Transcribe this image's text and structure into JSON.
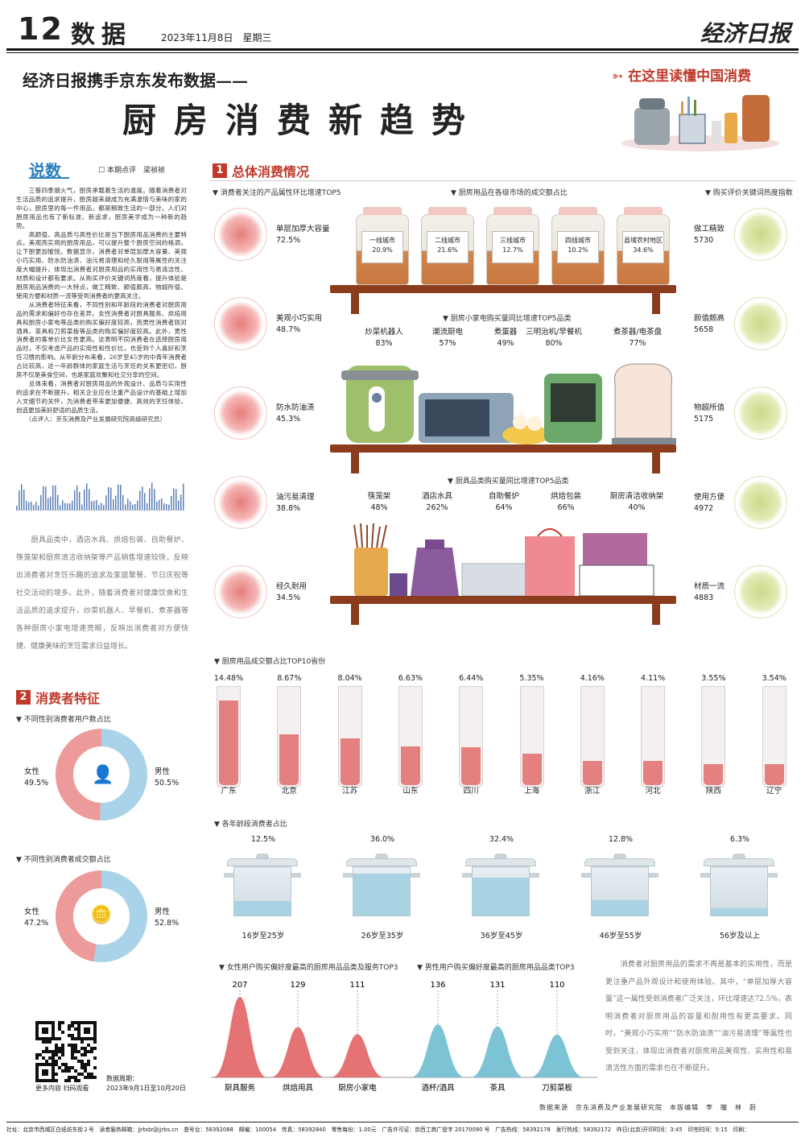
{
  "header": {
    "page_num": "12",
    "section": "数据",
    "date": "2023年11月8日",
    "weekday": "星期三",
    "paper": "经济日报"
  },
  "subtitle": "经济日报携手京东发布数据——",
  "title": "厨房消费新趋势",
  "slogan": "在这里读懂中国消费",
  "commentary": {
    "heading": "说数",
    "meta": "本期点评　梁祯祯",
    "body": "　　三餐四季烟火气，厨房承载着生活的温度。随着消费者对生活品质的追求提升，厨房越来越成为充满温情与美味的家的中心，厨房里的每一件用品，都是精致生活的一部分。人们对厨房用品也有了新标准、新追求，厨房美学成为一种新的趋势。\n　　高颜值、高品质与高性价比是当下厨房用品消费的主要特点。美观而实用的厨房用品，可以提升整个厨房空间的格调，让下厨更加愉悦。数据显示，消费者对单层加厚大容量、美观小巧实用、防水防油渍、油污易清理和经久耐用等属性的关注度大幅提升，体现出消费者对厨房用品的实用性与易清洁性、材质和设计都有要求。从购买评价关键词热度看，提升体验是厨房用品消费的一大特点，做工精致、颜值颇高、物超所值、使用方便和材质一流等受到消费者的更高关注。\n　　从消费者特征来看，不同性别和年龄段的消费者对厨房用品的需求和偏好也存在差异。女性消费者对厨具服务、烘焙用具和厨房小家电等品类的购买偏好度较高，而男性消费者则对酒具、茶具和刀剪菜板等品类的购买偏好度较高。此外，男性消费者的客单价比女性更高。这表明不同消费者在选择厨房用品时，不仅考虑产品的实用性和性价比，也受到个人喜好和烹饪习惯的影响。从年龄分布来看，26岁至45岁的中青年消费者占比较高，这一年龄群体的家庭生活与烹饪的关系更密切，厨房不仅是美食空间，也是家庭欢聚和社交分享的空间。\n　　总体来看，消费者对厨房用品的外观设计、品质与实用性的追求在不断提升，相关企业应在注重产品设计的基础上增加人文细节的关怀，为消费者带来更加便捷、高效的烹饪体验，创造更加美好舒适的品质生活。\n　　（点评人：京东消费及产业发展研究院高级研究员）",
    "para2": "　　厨具品类中，酒店水具、烘焙包装、自助餐炉、筷笼架和厨房清洁收纳架等产品销售增速较快，反映出消费者对烹饪乐趣的追求及家庭聚餐、节日庆祝等社交活动的增多。此外，随着消费者对健康饮食和生活品质的追求提升，炒菜机器人、早餐机、煮茶器等各种厨房小家电增速亮眼，反映出消费者对方便快捷、健康美味的烹饪需求日益增长。",
    "para3": "　　消费者对厨房用品的需求不再是基本的实用性，而是更注重产品外观设计和使用体验。其中，“单层加厚大容量”这一属性受到消费者广泛关注，环比增速达72.5%，表明消费者对厨房用品的容量和耐用性有更高要求。同时，“美观小巧实用”“防水防油渍”“油污易清理”等属性也受到关注，体现出消费者对厨房用品美观性、实用性和易清洁性方面的需求也在不断提升。"
  },
  "section1": {
    "num": "1",
    "title": "总体消费情况"
  },
  "section2": {
    "num": "2",
    "title": "消费者特征"
  },
  "attributes": {
    "heading": "消费者关注的产品属性环比增速TOP5",
    "items": [
      {
        "name": "单层加厚大容量",
        "value": "72.5%"
      },
      {
        "name": "美观小巧实用",
        "value": "48.7%"
      },
      {
        "name": "防水防油渍",
        "value": "45.3%"
      },
      {
        "name": "油污易清理",
        "value": "38.8%"
      },
      {
        "name": "经久耐用",
        "value": "34.5%"
      }
    ]
  },
  "keywords": {
    "heading": "购买评价关键词热度指数",
    "items": [
      {
        "name": "做工精致",
        "value": "5730"
      },
      {
        "name": "颜值颇高",
        "value": "5658"
      },
      {
        "name": "物超所值",
        "value": "5175"
      },
      {
        "name": "使用方便",
        "value": "4972"
      },
      {
        "name": "材质一流",
        "value": "4883"
      }
    ]
  },
  "city_share": {
    "heading": "厨房用品在各级市场的成交额占比",
    "items": [
      {
        "name": "一线城市",
        "value": "20.9%"
      },
      {
        "name": "二线城市",
        "value": "21.6%"
      },
      {
        "name": "三线城市",
        "value": "12.7%"
      },
      {
        "name": "四线城市",
        "value": "10.2%"
      },
      {
        "name": "县域农村地区",
        "value": "34.6%"
      }
    ]
  },
  "appliances": {
    "heading": "厨房小家电购买量同比增速TOP5品类",
    "items": [
      {
        "name": "炒菜机器人",
        "value": "83%"
      },
      {
        "name": "潮流厨电",
        "value": "57%"
      },
      {
        "name": "煮蛋器",
        "value": "49%"
      },
      {
        "name": "三明治机/早餐机",
        "value": "80%"
      },
      {
        "name": "煮茶器/电茶盘",
        "value": "77%"
      }
    ]
  },
  "cookware": {
    "heading": "厨具品类购买量同比增速TOP5品类",
    "items": [
      {
        "name": "筷笼架",
        "value": "48%"
      },
      {
        "name": "酒店水具",
        "value": "262%"
      },
      {
        "name": "自助餐炉",
        "value": "64%"
      },
      {
        "name": "烘焙包装",
        "value": "66%"
      },
      {
        "name": "厨房清洁收纳架",
        "value": "40%"
      }
    ]
  },
  "chart_data": [
    {
      "type": "bar",
      "title": "厨房用品成交额占比TOP10省份",
      "categories": [
        "广东",
        "北京",
        "江苏",
        "山东",
        "四川",
        "上海",
        "浙江",
        "河北",
        "陕西",
        "辽宁"
      ],
      "values": [
        14.48,
        8.67,
        8.04,
        6.63,
        6.44,
        5.35,
        4.16,
        4.11,
        3.55,
        3.54
      ],
      "labels": [
        "14.48%",
        "8.67%",
        "8.04%",
        "6.63%",
        "6.44%",
        "5.35%",
        "4.16%",
        "4.11%",
        "3.55%",
        "3.54%"
      ]
    },
    {
      "type": "bar",
      "title": "各年龄段消费者占比",
      "categories": [
        "16岁至25岁",
        "26岁至35岁",
        "36岁至45岁",
        "46岁至55岁",
        "56岁及以上"
      ],
      "values": [
        12.5,
        36.0,
        32.4,
        12.8,
        6.3
      ],
      "labels": [
        "12.5%",
        "36.0%",
        "32.4%",
        "12.8%",
        "6.3%"
      ]
    },
    {
      "type": "pie",
      "title": "不同性别消费者用户数占比",
      "categories": [
        "女性",
        "男性"
      ],
      "values": [
        49.5,
        50.5
      ],
      "labels": [
        "49.5%",
        "50.5%"
      ]
    },
    {
      "type": "pie",
      "title": "不同性别消费者成交额占比",
      "categories": [
        "女性",
        "男性"
      ],
      "values": [
        47.2,
        52.8
      ],
      "labels": [
        "47.2%",
        "52.8%"
      ]
    },
    {
      "type": "area",
      "title": "女性用户购买偏好度最高的厨房用品品类及服务TOP3",
      "categories": [
        "厨具服务",
        "烘焙用具",
        "厨房小家电"
      ],
      "values": [
        207,
        129,
        111
      ]
    },
    {
      "type": "area",
      "title": "男性用户购买偏好度最高的厨房用品品类TOP3",
      "categories": [
        "酒杯/酒具",
        "茶具",
        "刀剪菜板"
      ],
      "values": [
        136,
        131,
        110
      ]
    }
  ],
  "gender_users": {
    "heading": "不同性别消费者用户数占比",
    "female_label": "女性",
    "female": "49.5%",
    "male_label": "男性",
    "male": "50.5%"
  },
  "gender_amount": {
    "heading": "不同性别消费者成交额占比",
    "female_label": "女性",
    "female": "47.2%",
    "male_label": "男性",
    "male": "52.8%"
  },
  "colors": {
    "red": "#c0392b",
    "pink": "#ec8a8a",
    "blue": "#a9d3e8",
    "green": "#cfdc8e"
  },
  "qr": {
    "caption": "更多内容 扫码观看"
  },
  "data_period": {
    "label": "数据周期：",
    "value": "2023年9月1日至10月20日"
  },
  "credits": "数据来源　京东消费及产业发展研究院　本版编辑　李　瞳　林　蔚",
  "footer": "社址：北京市西城区白纸坊东街２号　读者服务邮箱：jjrbdz@jjrbs.cn　查号台：58392088　邮编：100054　传真：58392840　零售每份：1.00元　广告许可证：京西工商广登字 20170090 号　广告热线：58392178　发行热线：58392172　昨日(北京)开印时间：3:45　印完时间：5:15　印刷："
}
